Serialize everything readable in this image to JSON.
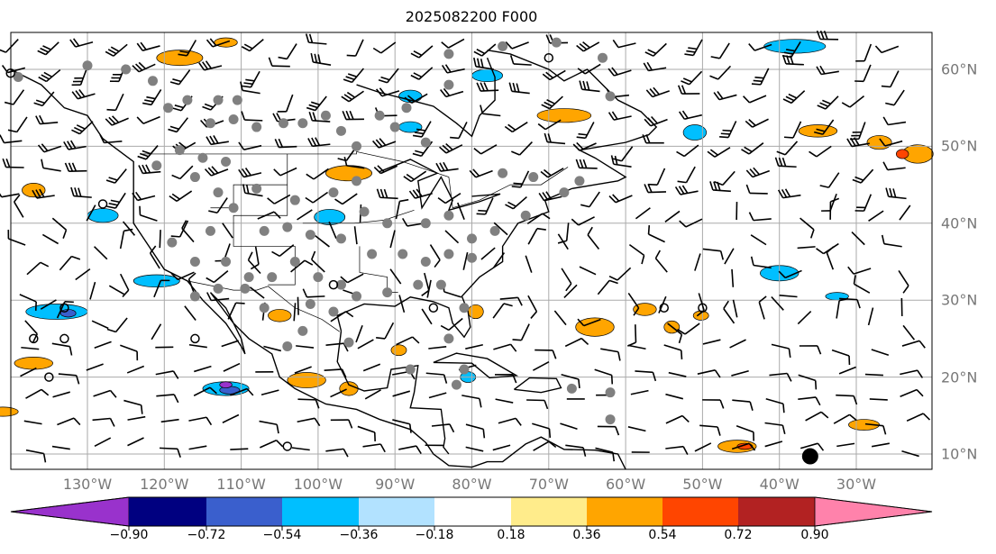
{
  "title": "2025082200 F000",
  "lon_labels": [
    "130°W",
    "120°W",
    "110°W",
    "100°W",
    "90°W",
    "80°W",
    "70°W",
    "60°W",
    "50°W",
    "40°W",
    "30°W"
  ],
  "lat_labels": [
    "60°N",
    "50°N",
    "40°N",
    "30°N",
    "20°N",
    "10°N"
  ],
  "colorbar": {
    "ticks": [
      "−0.90",
      "−0.72",
      "−0.54",
      "−0.36",
      "−0.18",
      "0.18",
      "0.36",
      "0.54",
      "0.72",
      "0.90"
    ],
    "colors": [
      "#9932CC",
      "#000080",
      "#3A5FCD",
      "#00BFFF",
      "#B2E2FF",
      "#FFFFFF",
      "#FFEC8B",
      "#FFA500",
      "#FF4500",
      "#B22222",
      "#FF82AB"
    ]
  }
}
